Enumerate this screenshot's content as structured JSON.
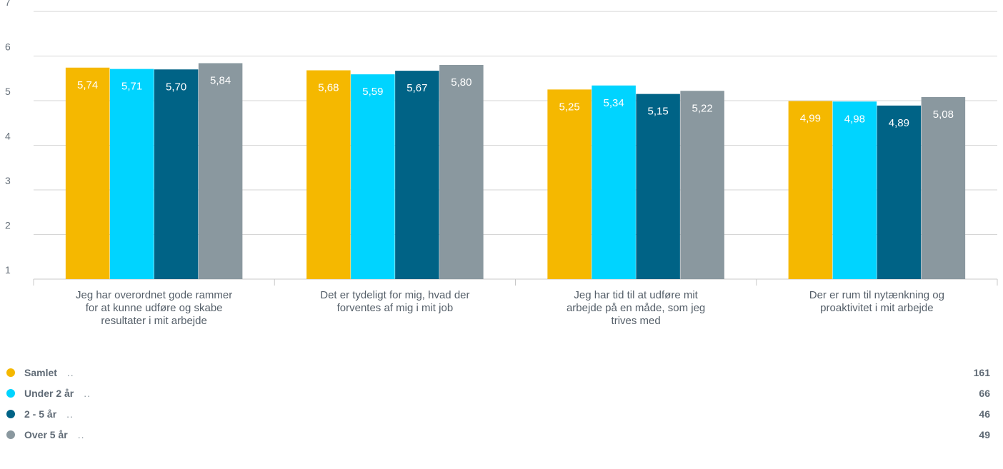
{
  "chart_data": {
    "type": "bar",
    "categories": [
      [
        "Jeg har overordnet gode rammer",
        "for at kunne udføre og skabe",
        "resultater i mit arbejde"
      ],
      [
        "Det er tydeligt for mig, hvad der",
        "forventes af mig i mit job"
      ],
      [
        "Jeg har tid til at udføre mit",
        "arbejde på en måde, som jeg",
        "trives med"
      ],
      [
        "Der er rum til nytænkning og",
        "proaktivitet i mit arbejde"
      ]
    ],
    "series": [
      {
        "name": "Samlet",
        "color": "#f5b800",
        "values": [
          5.74,
          5.68,
          5.25,
          4.99
        ],
        "labels": [
          "5,74",
          "5,68",
          "5,25",
          "4,99"
        ]
      },
      {
        "name": "Under 2 år",
        "color": "#00d4ff",
        "values": [
          5.71,
          5.59,
          5.34,
          4.98
        ],
        "labels": [
          "5,71",
          "5,59",
          "5,34",
          "4,98"
        ]
      },
      {
        "name": "2 - 5 år",
        "color": "#006386",
        "values": [
          5.7,
          5.67,
          5.15,
          4.89
        ],
        "labels": [
          "5,70",
          "5,67",
          "5,15",
          "4,89"
        ]
      },
      {
        "name": "Over 5 år",
        "color": "#8a989f",
        "values": [
          5.84,
          5.8,
          5.22,
          5.08
        ],
        "labels": [
          "5,84",
          "5,80",
          "5,22",
          "5,08"
        ]
      }
    ],
    "ylim": [
      1,
      7
    ],
    "yticks": [
      "1",
      "2",
      "3",
      "4",
      "5",
      "6",
      "7"
    ],
    "grid": true,
    "legend_position": "bottom"
  },
  "legend": [
    {
      "name": "Samlet",
      "dots": "..",
      "count": "161"
    },
    {
      "name": "Under 2 år",
      "dots": "..",
      "count": "66"
    },
    {
      "name": "2 - 5 år",
      "dots": "..",
      "count": "46"
    },
    {
      "name": "Over 5 år",
      "dots": "..",
      "count": "49"
    }
  ]
}
